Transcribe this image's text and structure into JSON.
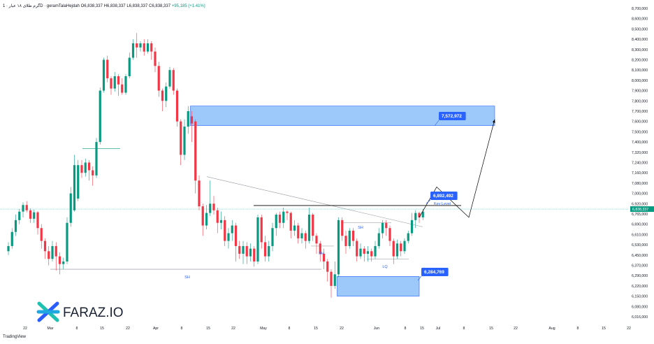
{
  "header": {
    "symbol": "گرم طلای ۱۸ عیار · 1D · geramTalaHejdah",
    "open": "O6,838,337",
    "high": "H6,838,337",
    "low": "L6,838,337",
    "close": "C6,838,337",
    "change": "+95,185 (+1.41%)"
  },
  "branding": {
    "logo_text": "FARAZ.IO",
    "tradingview": "TradingView"
  },
  "colors": {
    "up": "#089981",
    "down": "#f23645",
    "zone": "#4c9af5",
    "label_bg": "#2962ff",
    "line": "#000000",
    "price_line": "#089981"
  },
  "chart_data": {
    "type": "candlestick",
    "y_range": [
      6016000,
      8700000
    ],
    "y_ticks": [
      "8,700,000",
      "8,600,000",
      "8,500,000",
      "8,400,000",
      "8,300,000",
      "8,200,000",
      "8,100,000",
      "8,000,000",
      "7,900,000",
      "7,800,000",
      "7,700,000",
      "7,600,000",
      "7,500,000",
      "7,400,000",
      "7,320,000",
      "7,240,000",
      "7,160,000",
      "7,080,000",
      "7,000,000",
      "6,920,000",
      "6,765,000",
      "6,690,000",
      "6,610,000",
      "6,530,000",
      "6,450,000",
      "6,370,000",
      "6,290,000",
      "6,220,000",
      "6,150,000",
      "6,080,000",
      "6,016,000"
    ],
    "x_ticks": [
      "22",
      "Mar",
      "8",
      "15",
      "22",
      "Apr",
      "8",
      "15",
      "22",
      "May",
      "8",
      "15",
      "22",
      "Jun",
      "8",
      "15",
      "Jul",
      "8",
      "15",
      "22",
      "Aug",
      "8",
      "15",
      "22"
    ],
    "current_price": "6,838,337",
    "candles": [
      [
        6.48,
        6.52,
        6.45,
        6.55
      ],
      [
        6.52,
        6.63,
        6.5,
        6.66
      ],
      [
        6.63,
        6.72,
        6.6,
        6.76
      ],
      [
        6.72,
        6.8,
        6.69,
        6.84
      ],
      [
        6.8,
        6.9,
        6.74,
        6.93
      ],
      [
        6.9,
        6.82,
        6.79,
        6.94
      ],
      [
        6.82,
        6.73,
        6.7,
        6.85
      ],
      [
        6.73,
        6.79,
        6.7,
        6.83
      ],
      [
        6.79,
        6.66,
        6.61,
        6.81
      ],
      [
        6.66,
        6.56,
        6.5,
        6.69
      ],
      [
        6.56,
        6.48,
        6.42,
        6.58
      ],
      [
        6.48,
        6.42,
        6.37,
        6.52
      ],
      [
        6.42,
        6.52,
        6.4,
        6.56
      ],
      [
        6.52,
        6.44,
        6.33,
        6.55
      ],
      [
        6.44,
        6.38,
        6.3,
        6.47
      ],
      [
        6.38,
        6.4,
        6.34,
        6.43
      ],
      [
        6.4,
        6.7,
        6.38,
        6.74
      ],
      [
        6.7,
        7.0,
        6.67,
        7.05
      ],
      [
        6.82,
        7.22,
        6.8,
        7.3
      ],
      [
        6.96,
        7.22,
        6.94,
        7.26
      ],
      [
        7.22,
        7.16,
        7.12,
        7.26
      ],
      [
        7.16,
        7.24,
        7.13,
        7.27
      ],
      [
        7.24,
        7.18,
        7.1,
        7.26
      ],
      [
        7.18,
        7.14,
        7.06,
        7.21
      ],
      [
        7.14,
        7.4,
        7.12,
        7.44
      ],
      [
        7.4,
        7.9,
        7.38,
        7.93
      ],
      [
        7.9,
        8.2,
        7.88,
        8.22
      ],
      [
        8.2,
        8.02,
        7.98,
        8.24
      ],
      [
        8.02,
        7.92,
        7.86,
        8.04
      ],
      [
        7.92,
        8.04,
        7.89,
        8.08
      ],
      [
        8.04,
        7.96,
        7.85,
        8.06
      ],
      [
        7.96,
        7.88,
        7.86,
        8.02
      ],
      [
        7.88,
        8.04,
        7.86,
        8.06
      ],
      [
        8.04,
        8.22,
        8.02,
        8.27
      ],
      [
        8.22,
        8.36,
        8.2,
        8.4
      ],
      [
        8.36,
        8.32,
        8.22,
        8.46
      ],
      [
        8.32,
        8.36,
        8.28,
        8.38
      ],
      [
        8.36,
        8.28,
        8.24,
        8.4
      ],
      [
        8.28,
        8.36,
        8.26,
        8.4
      ],
      [
        8.36,
        8.28,
        8.2,
        8.38
      ],
      [
        8.28,
        8.14,
        8.08,
        8.32
      ],
      [
        8.14,
        7.9,
        7.84,
        8.18
      ],
      [
        7.9,
        7.8,
        7.7,
        7.92
      ],
      [
        7.8,
        7.94,
        7.74,
        7.98
      ],
      [
        7.94,
        8.1,
        7.92,
        8.13
      ],
      [
        8.1,
        7.9,
        7.86,
        8.12
      ],
      [
        7.9,
        7.6,
        7.55,
        7.92
      ],
      [
        7.6,
        7.3,
        7.22,
        7.62
      ],
      [
        7.3,
        7.55,
        7.26,
        7.62
      ],
      [
        7.55,
        7.7,
        7.48,
        7.75
      ],
      [
        7.65,
        7.58,
        7.4,
        7.7
      ],
      [
        7.6,
        7.1,
        7.0,
        7.62
      ],
      [
        7.1,
        6.88,
        6.82,
        7.14
      ],
      [
        6.88,
        6.68,
        6.6,
        6.92
      ],
      [
        6.68,
        6.78,
        6.65,
        6.9
      ],
      [
        6.78,
        6.92,
        6.75,
        7.1
      ],
      [
        6.92,
        6.82,
        6.76,
        6.98
      ],
      [
        6.82,
        6.7,
        6.62,
        6.86
      ],
      [
        6.7,
        6.72,
        6.65,
        6.8
      ],
      [
        6.72,
        6.56,
        6.52,
        6.75
      ],
      [
        6.56,
        6.62,
        6.5,
        6.66
      ],
      [
        6.62,
        6.68,
        6.56,
        6.72
      ],
      [
        6.68,
        6.52,
        6.4,
        6.7
      ],
      [
        6.52,
        6.46,
        6.42,
        6.56
      ],
      [
        6.46,
        6.52,
        6.38,
        6.56
      ],
      [
        6.52,
        6.44,
        6.38,
        6.55
      ],
      [
        6.44,
        6.5,
        6.4,
        6.54
      ],
      [
        6.5,
        6.4,
        6.36,
        6.52
      ],
      [
        6.4,
        6.74,
        6.38,
        6.76
      ],
      [
        6.74,
        6.55,
        6.5,
        6.76
      ],
      [
        6.55,
        6.44,
        6.4,
        6.6
      ],
      [
        6.44,
        6.52,
        6.4,
        6.56
      ],
      [
        6.52,
        6.66,
        6.48,
        6.7
      ],
      [
        6.66,
        6.76,
        6.6,
        6.78
      ],
      [
        6.76,
        6.7,
        6.66,
        6.8
      ],
      [
        6.7,
        6.8,
        6.66,
        6.86
      ],
      [
        6.8,
        6.78,
        6.72,
        6.82
      ],
      [
        6.78,
        6.64,
        6.58,
        6.8
      ],
      [
        6.64,
        6.68,
        6.6,
        6.72
      ],
      [
        6.68,
        6.58,
        6.54,
        6.7
      ],
      [
        6.58,
        6.62,
        6.54,
        6.66
      ],
      [
        6.62,
        6.56,
        6.5,
        6.64
      ],
      [
        6.56,
        6.76,
        6.54,
        6.86
      ],
      [
        6.76,
        6.6,
        6.56,
        6.78
      ],
      [
        6.6,
        6.54,
        6.46,
        6.62
      ],
      [
        6.54,
        6.46,
        6.4,
        6.56
      ],
      [
        6.46,
        6.4,
        6.34,
        6.5
      ],
      [
        6.4,
        6.32,
        6.25,
        6.42
      ],
      [
        6.32,
        6.22,
        6.14,
        6.34
      ],
      [
        6.22,
        6.3,
        6.2,
        6.4
      ],
      [
        6.3,
        6.72,
        6.28,
        6.74
      ],
      [
        6.72,
        6.6,
        6.56,
        6.74
      ],
      [
        6.6,
        6.52,
        6.46,
        6.64
      ],
      [
        6.52,
        6.64,
        6.5,
        6.66
      ],
      [
        6.64,
        6.56,
        6.52,
        6.66
      ],
      [
        6.56,
        6.44,
        6.4,
        6.58
      ],
      [
        6.44,
        6.5,
        6.42,
        6.54
      ],
      [
        6.5,
        6.46,
        6.4,
        6.52
      ],
      [
        6.46,
        6.48,
        6.4,
        6.52
      ],
      [
        6.48,
        6.44,
        6.4,
        6.5
      ],
      [
        6.44,
        6.52,
        6.42,
        6.56
      ],
      [
        6.52,
        6.62,
        6.5,
        6.66
      ],
      [
        6.62,
        6.7,
        6.58,
        6.72
      ],
      [
        6.7,
        6.66,
        6.6,
        6.72
      ],
      [
        6.66,
        6.56,
        6.52,
        6.68
      ],
      [
        6.56,
        6.44,
        6.38,
        6.58
      ],
      [
        6.44,
        6.54,
        6.42,
        6.57
      ],
      [
        6.54,
        6.48,
        6.44,
        6.56
      ],
      [
        6.48,
        6.56,
        6.46,
        6.58
      ],
      [
        6.56,
        6.62,
        6.54,
        6.64
      ],
      [
        6.62,
        6.72,
        6.6,
        6.78
      ],
      [
        6.72,
        6.78,
        6.66,
        6.82
      ],
      [
        6.78,
        6.74,
        6.7,
        6.8
      ],
      [
        6.74,
        6.8,
        6.72,
        6.84
      ]
    ],
    "zones": [
      {
        "label": "7,572,972",
        "top": 7750000,
        "bottom": 7560000,
        "from_candle": 50,
        "to": "Jul 17"
      },
      {
        "label": "6,284,769",
        "top": 6284769,
        "bottom": 6150000,
        "from_candle": 90,
        "to": "Jun 14"
      }
    ],
    "key_level": {
      "label": "6,892,492",
      "text": "Key Level",
      "value": 6892492
    },
    "annotations": [
      {
        "text": "SH",
        "kind": "swing-high",
        "value": 6340000
      },
      {
        "text": "SH",
        "kind": "swing-high",
        "value": 6700000
      },
      {
        "text": "SH",
        "kind": "swing-high",
        "value": 6520000
      },
      {
        "text": "LQ",
        "kind": "liquidity",
        "value": 6420000
      }
    ],
    "projection": [
      [
        6.74,
        "Jun 14"
      ],
      [
        7.05,
        "Jun 20"
      ],
      [
        6.74,
        "Jul 1"
      ],
      [
        7.62,
        "Jul 17"
      ]
    ]
  }
}
